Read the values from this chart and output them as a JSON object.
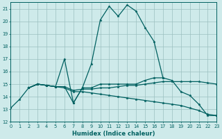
{
  "xlabel": "Humidex (Indice chaleur)",
  "bg_color": "#ceeaea",
  "grid_color": "#9bbfbf",
  "line_color": "#006060",
  "xlim": [
    0,
    23
  ],
  "ylim": [
    12,
    21.5
  ],
  "xticks": [
    0,
    1,
    2,
    3,
    4,
    5,
    6,
    7,
    8,
    9,
    10,
    11,
    12,
    13,
    14,
    15,
    16,
    17,
    18,
    19,
    20,
    21,
    22,
    23
  ],
  "yticks": [
    12,
    13,
    14,
    15,
    16,
    17,
    18,
    19,
    20,
    21
  ],
  "line1_x": [
    0,
    1,
    2,
    3,
    4,
    5,
    6,
    7,
    8,
    9,
    10,
    11,
    12,
    13,
    14,
    15,
    16,
    17,
    18,
    19,
    20,
    21,
    22,
    23
  ],
  "line1_y": [
    13.1,
    13.8,
    14.7,
    15.0,
    14.9,
    14.8,
    14.8,
    13.5,
    14.7,
    16.6,
    20.1,
    21.2,
    20.4,
    21.3,
    20.8,
    19.5,
    18.4,
    15.5,
    15.3,
    14.4,
    14.1,
    13.4,
    12.5,
    12.5
  ],
  "line2_x": [
    2,
    3,
    4,
    5,
    6,
    7,
    8,
    9,
    10,
    11,
    12,
    13,
    14,
    15,
    16,
    17
  ],
  "line2_y": [
    14.7,
    15.0,
    14.9,
    14.8,
    17.0,
    13.5,
    14.7,
    14.7,
    15.0,
    15.0,
    15.0,
    15.0,
    15.0,
    15.3,
    15.5,
    15.5
  ],
  "line3_x": [
    2,
    3,
    4,
    5,
    6,
    7,
    8,
    9,
    10,
    11,
    12,
    13,
    14,
    15,
    16,
    17,
    18,
    19,
    20,
    21,
    22,
    23
  ],
  "line3_y": [
    14.7,
    15.0,
    14.9,
    14.8,
    14.8,
    14.5,
    14.6,
    14.6,
    14.7,
    14.7,
    14.8,
    14.9,
    14.9,
    15.0,
    15.1,
    15.2,
    15.2,
    15.2,
    15.2,
    15.2,
    15.1,
    15.0
  ],
  "line4_x": [
    2,
    3,
    4,
    5,
    6,
    7,
    8,
    9,
    10,
    11,
    12,
    13,
    14,
    15,
    16,
    17,
    18,
    19,
    20,
    21,
    22,
    23
  ],
  "line4_y": [
    14.7,
    15.0,
    14.9,
    14.8,
    14.7,
    14.4,
    14.4,
    14.3,
    14.2,
    14.1,
    14.0,
    13.9,
    13.8,
    13.7,
    13.6,
    13.5,
    13.4,
    13.3,
    13.1,
    12.9,
    12.6,
    12.5
  ]
}
